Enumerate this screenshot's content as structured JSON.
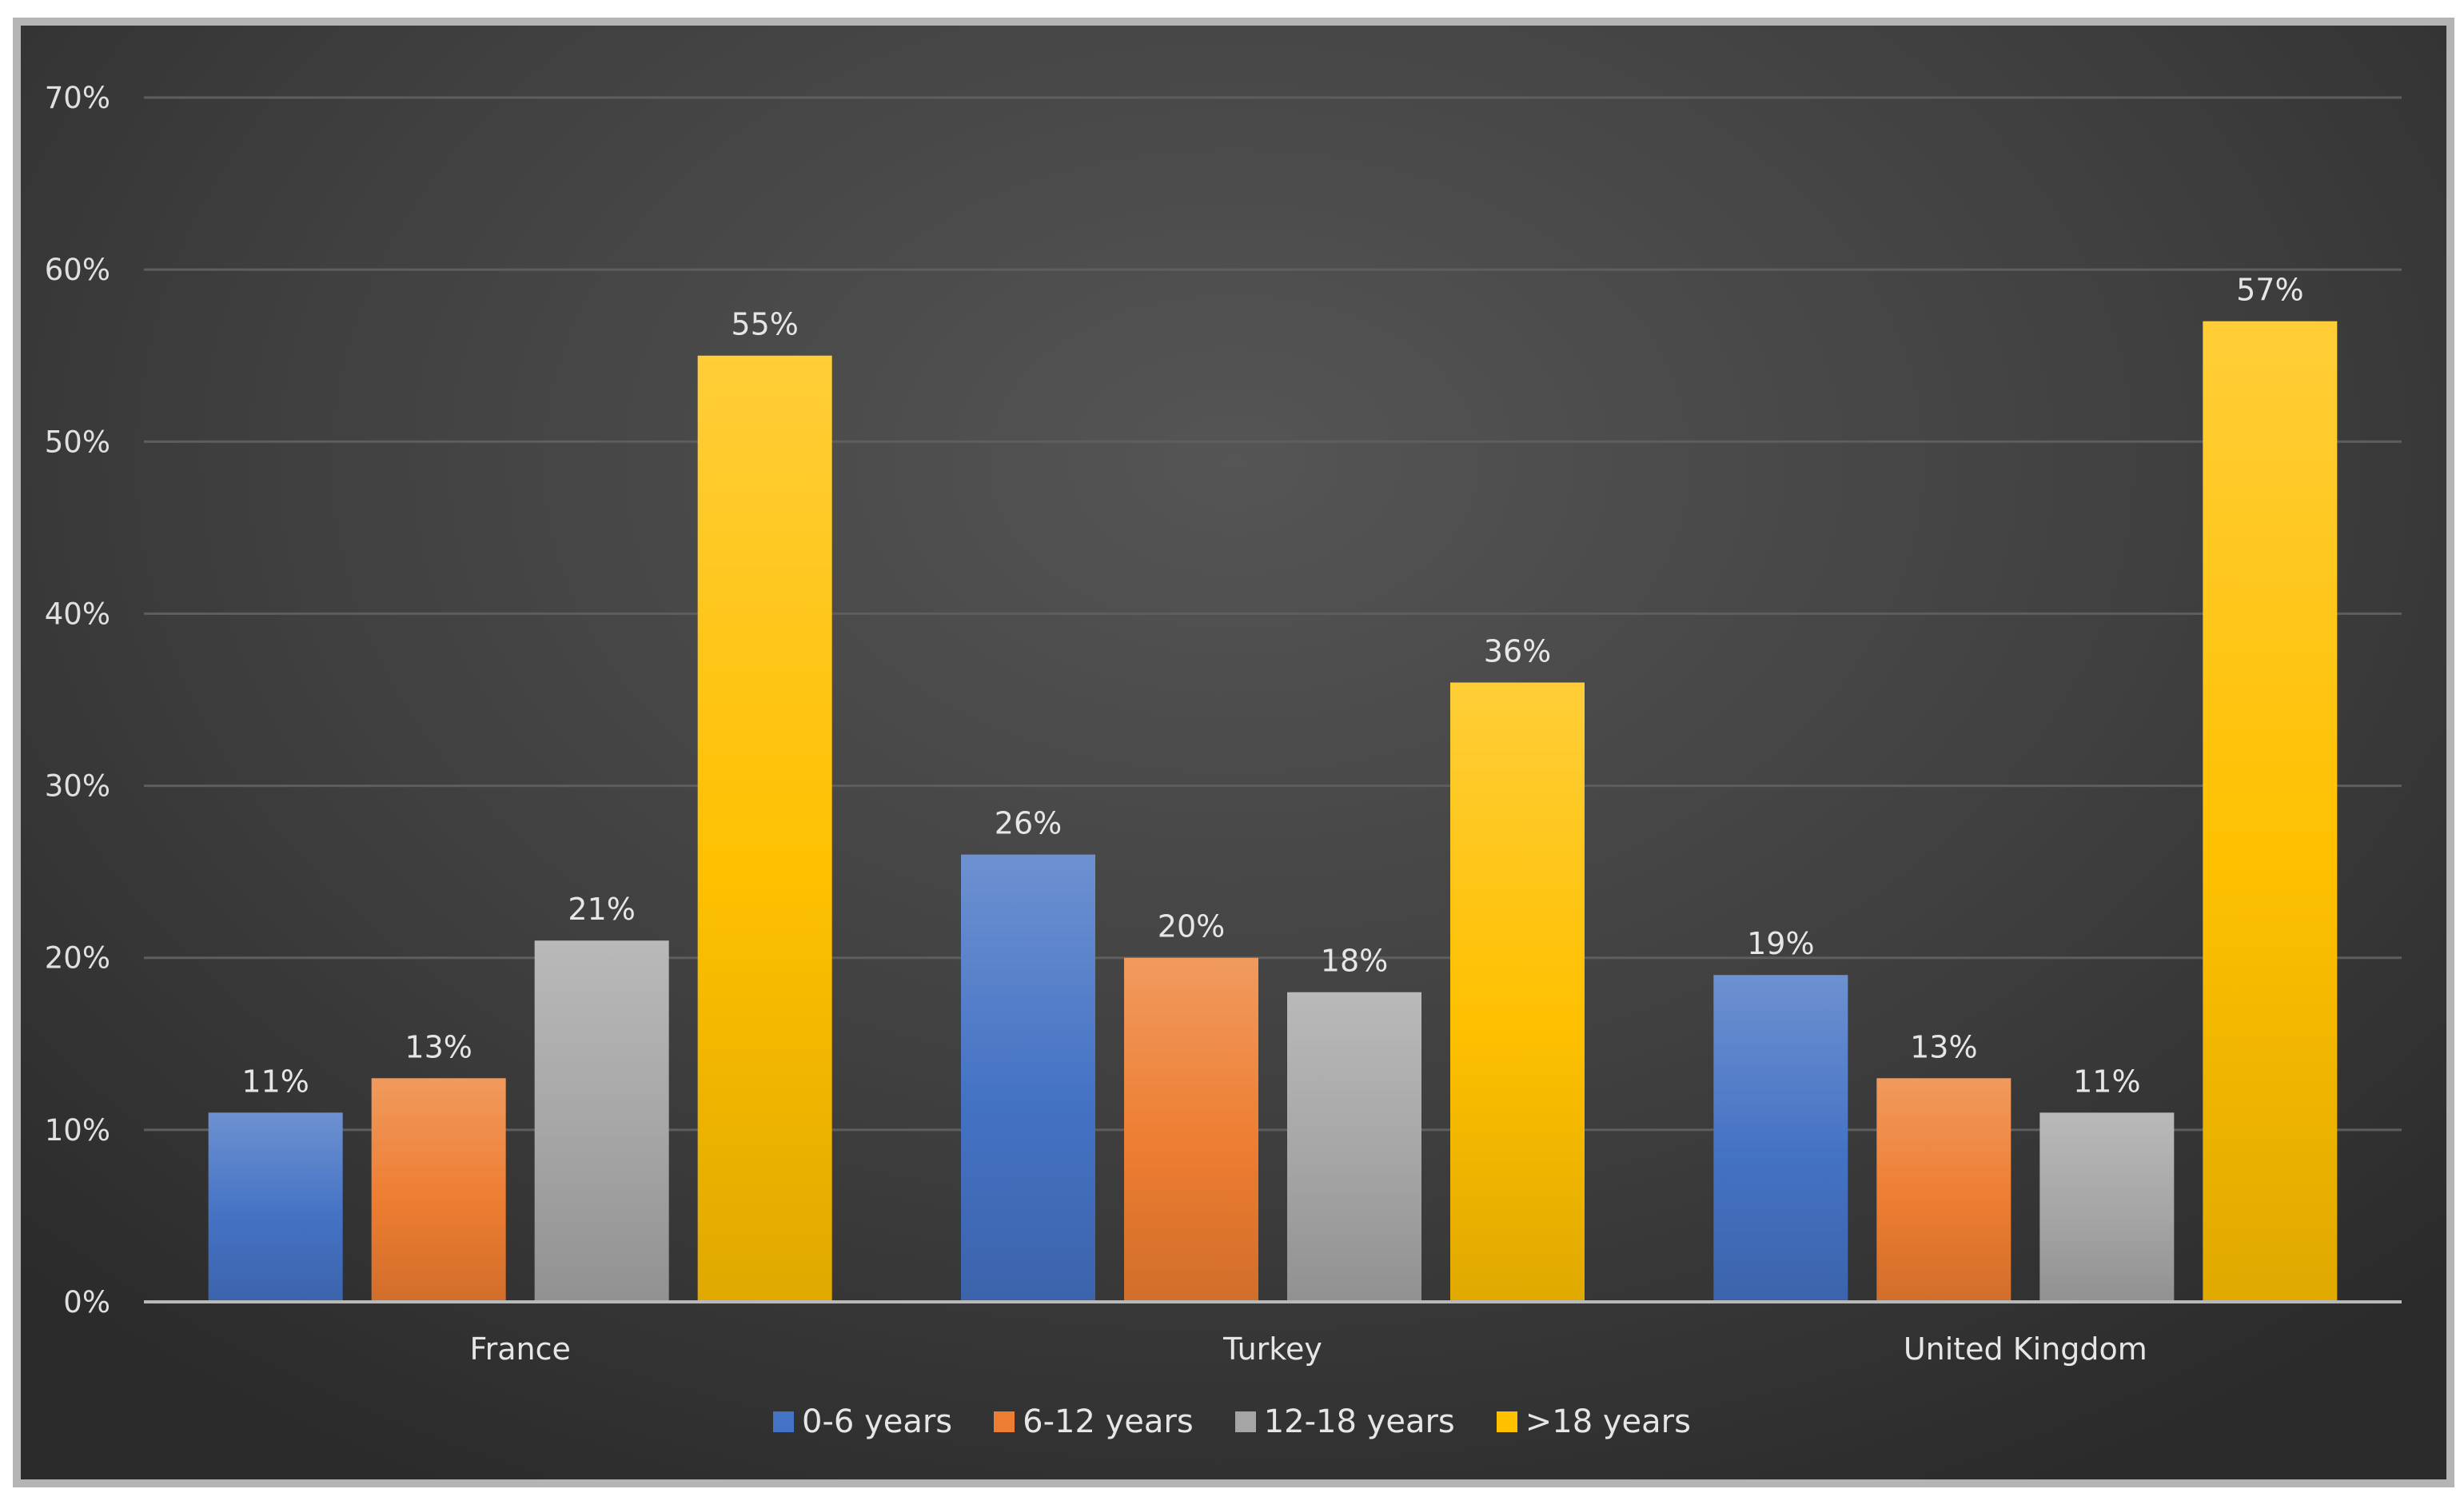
{
  "chart_data": {
    "type": "bar",
    "title": "",
    "xlabel": "",
    "ylabel": "",
    "categories": [
      "France",
      "Turkey",
      "United Kingdom"
    ],
    "series": [
      {
        "name": "0-6 years",
        "color": "#4472c4",
        "values": [
          11,
          26,
          19
        ],
        "labels": [
          "11%",
          "26%",
          "19%"
        ]
      },
      {
        "name": "6-12 years",
        "color": "#ed7d31",
        "values": [
          13,
          20,
          13
        ],
        "labels": [
          "13%",
          "20%",
          "13%"
        ]
      },
      {
        "name": "12-18 years",
        "color": "#a5a5a5",
        "values": [
          21,
          18,
          11
        ],
        "labels": [
          "21%",
          "18%",
          "11%"
        ]
      },
      {
        "name": ">18 years",
        "color": "#ffc000",
        "values": [
          55,
          36,
          57
        ],
        "labels": [
          "55%",
          "36%",
          "57%"
        ]
      }
    ],
    "ylim": [
      0,
      70
    ],
    "yticks": [
      0,
      10,
      20,
      30,
      40,
      50,
      60,
      70
    ],
    "ytick_labels": [
      "0%",
      "10%",
      "20%",
      "30%",
      "40%",
      "50%",
      "60%",
      "70%"
    ],
    "grid": true,
    "legend_position": "bottom"
  }
}
